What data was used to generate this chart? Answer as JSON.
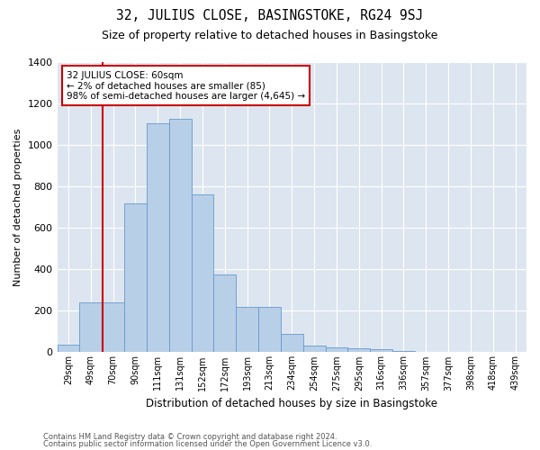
{
  "title": "32, JULIUS CLOSE, BASINGSTOKE, RG24 9SJ",
  "subtitle": "Size of property relative to detached houses in Basingstoke",
  "xlabel": "Distribution of detached houses by size in Basingstoke",
  "ylabel": "Number of detached properties",
  "categories": [
    "29sqm",
    "49sqm",
    "70sqm",
    "90sqm",
    "111sqm",
    "131sqm",
    "152sqm",
    "172sqm",
    "193sqm",
    "213sqm",
    "234sqm",
    "254sqm",
    "275sqm",
    "295sqm",
    "316sqm",
    "336sqm",
    "357sqm",
    "377sqm",
    "398sqm",
    "418sqm",
    "439sqm"
  ],
  "values": [
    35,
    240,
    240,
    720,
    1105,
    1125,
    760,
    375,
    220,
    220,
    90,
    33,
    25,
    20,
    13,
    5,
    0,
    0,
    0,
    0,
    0
  ],
  "bar_color": "#b8cfe8",
  "bar_edge_color": "#6699cc",
  "background_color": "#dde6f0",
  "vline_color": "#cc0000",
  "vline_x": 1.55,
  "annotation_text": "32 JULIUS CLOSE: 60sqm\n← 2% of detached houses are smaller (85)\n98% of semi-detached houses are larger (4,645) →",
  "annotation_box_color": "#ffffff",
  "annotation_box_edge": "#cc0000",
  "ylim": [
    0,
    1400
  ],
  "yticks": [
    0,
    200,
    400,
    600,
    800,
    1000,
    1200,
    1400
  ],
  "footer1": "Contains HM Land Registry data © Crown copyright and database right 2024.",
  "footer2": "Contains public sector information licensed under the Open Government Licence v3.0."
}
